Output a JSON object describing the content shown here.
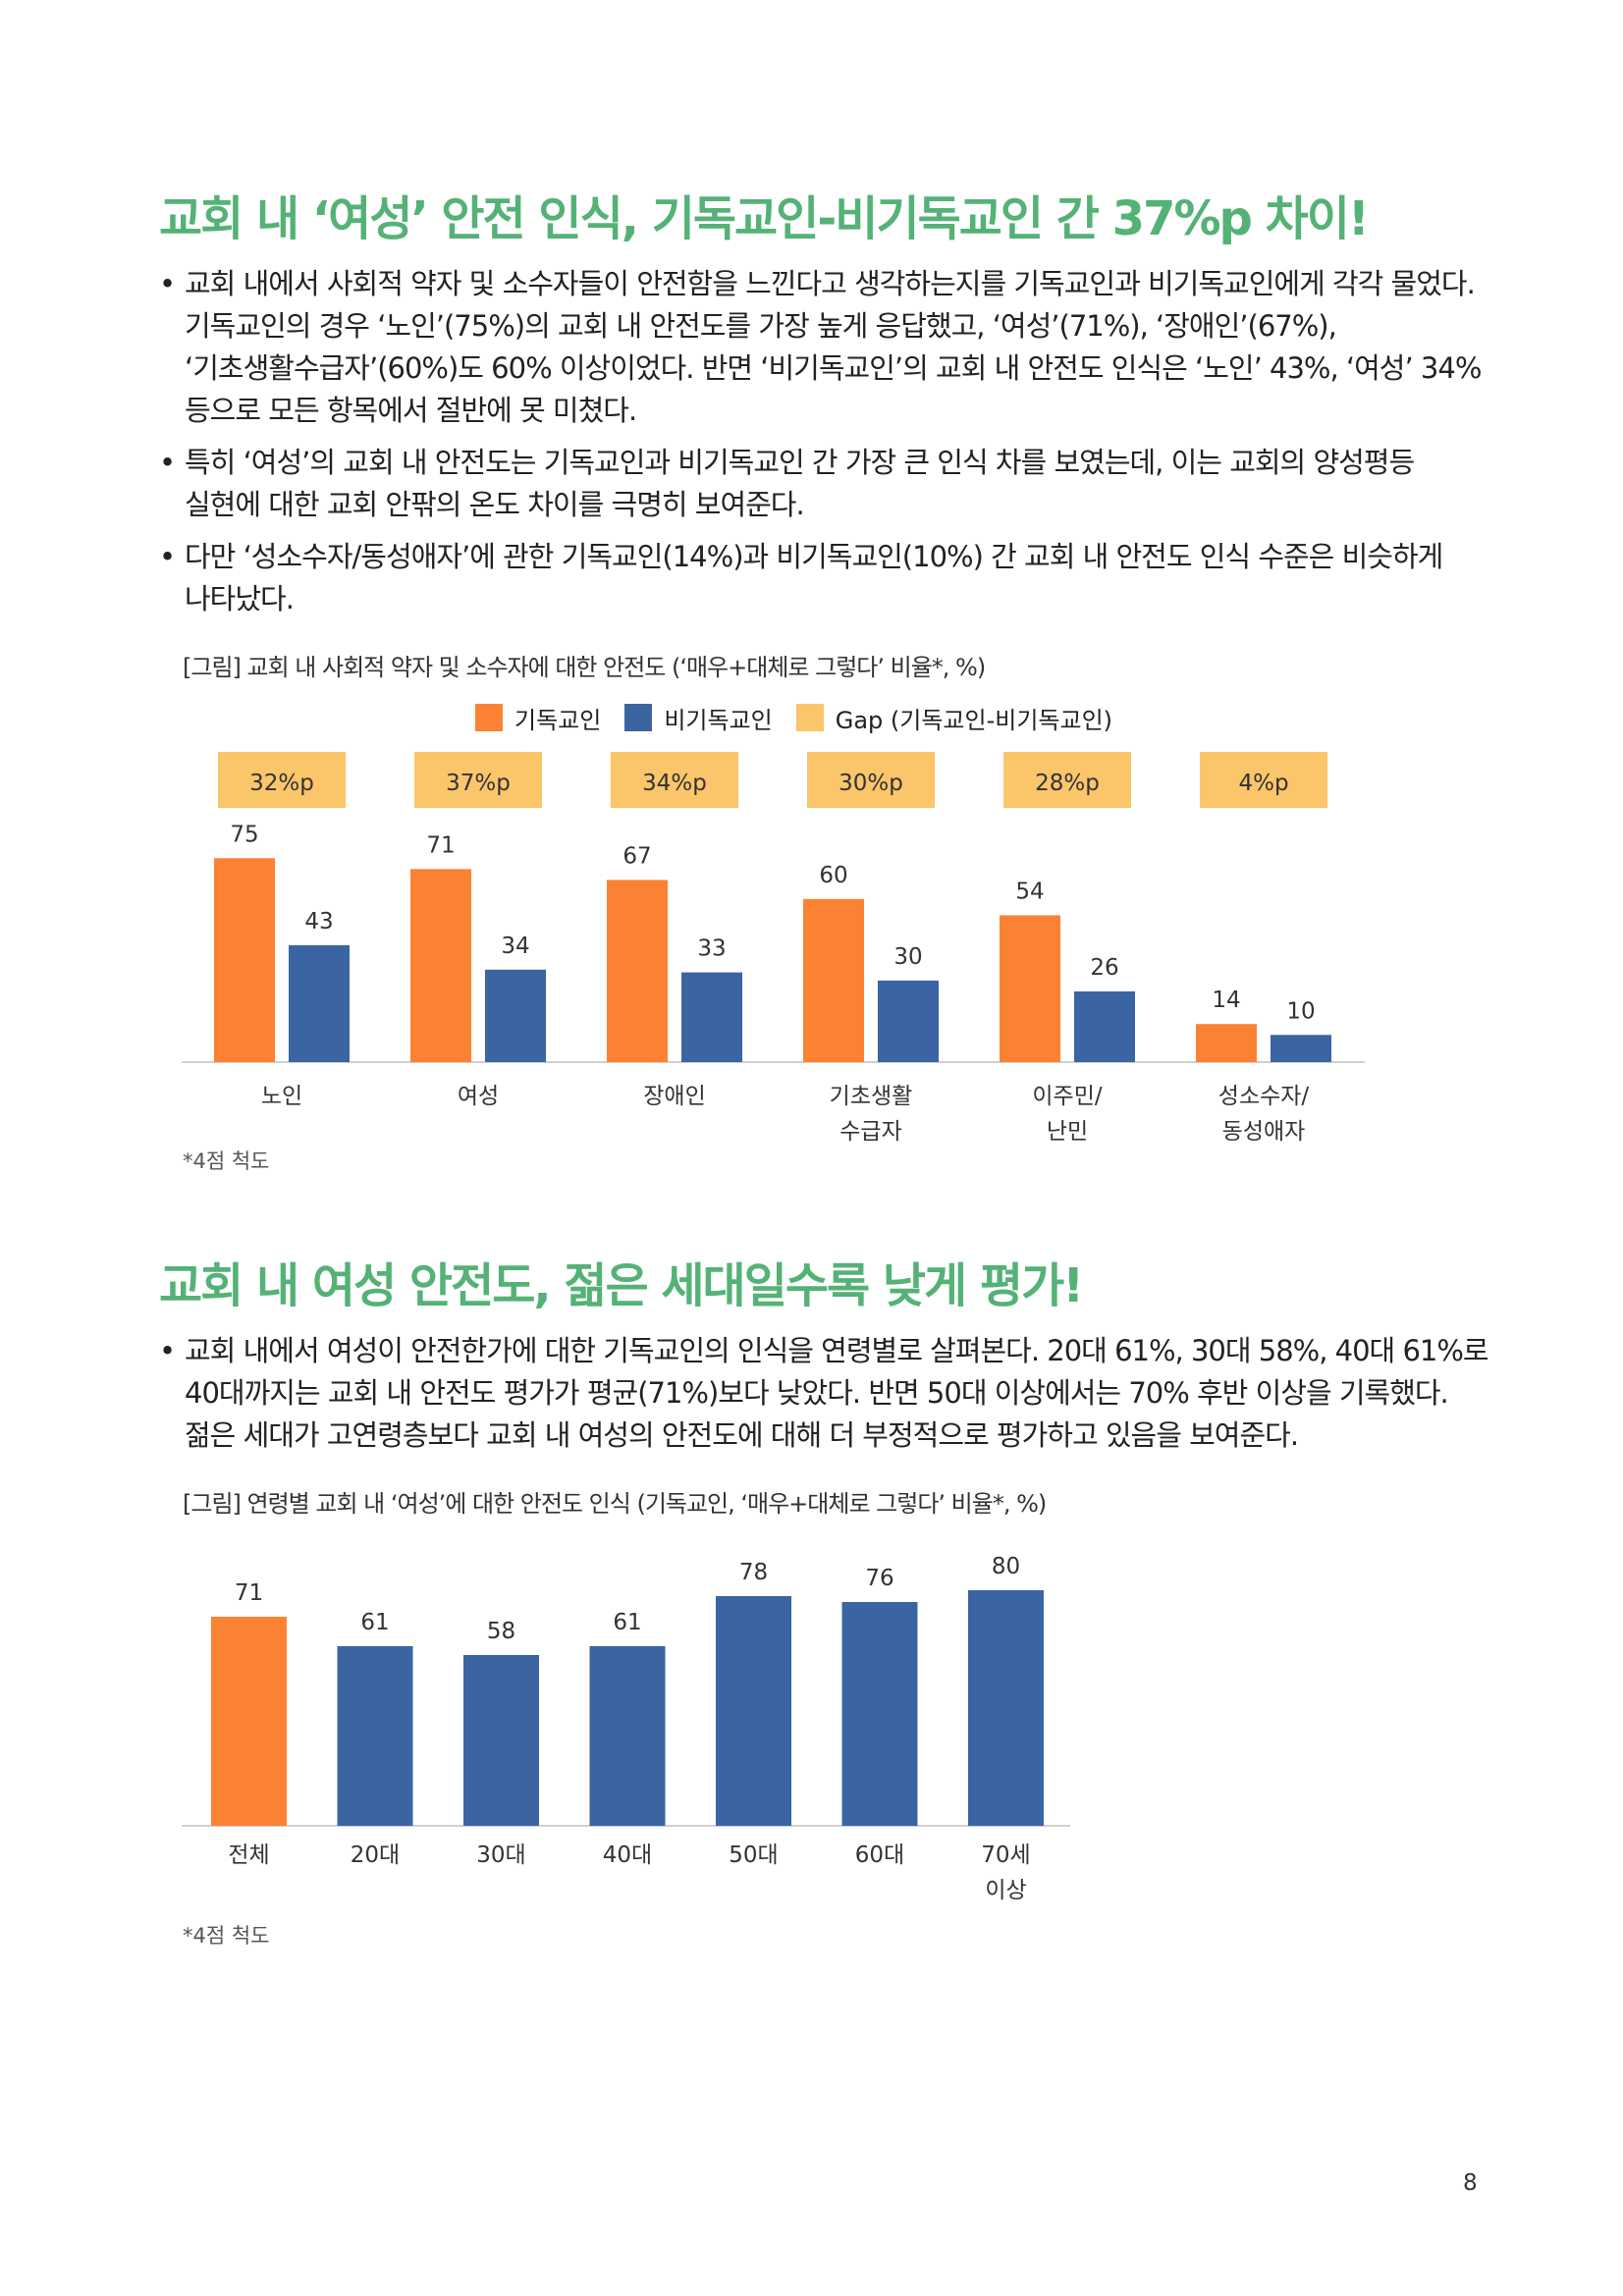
{
  "section1": {
    "heading": "교회 내 ‘여성’ 안전 인식, 기독교인-비기독교인 간 37%p 차이!",
    "bullets": [
      "교회 내에서 사회적 약자 및 소수자들이 안전함을 느낀다고 생각하는지를 기독교인과 비기독교인에게 각각 물었다. 기독교인의 경우 ‘노인’(75%)의 교회 내 안전도를 가장 높게 응답했고, ‘여성’(71%), ‘장애인’(67%), ‘기초생활수급자’(60%)도 60% 이상이었다. 반면 ‘비기독교인’의 교회 내 안전도 인식은 ‘노인’ 43%, ‘여성’ 34% 등으로 모든 항목에서 절반에 못 미쳤다.",
      "특히 ‘여성’의 교회 내 안전도는 기독교인과 비기독교인 간 가장 큰 인식 차를 보였는데, 이는 교회의 양성평등 실현에 대한 교회 안팎의 온도 차이를 극명히 보여준다.",
      "다만 ‘성소수자/동성애자’에 관한 기독교인(14%)과 비기독교인(10%) 간 교회 내 안전도 인식 수준은 비슷하게 나타났다."
    ],
    "caption": "[그림] 교회 내 사회적 약자 및 소수자에 대한 안전도 (‘매우+대체로 그렇다’ 비율*, %)",
    "legend": [
      "기독교인",
      "비기독교인",
      "Gap (기독교인-비기독교인)"
    ],
    "note": "*4점 척도"
  },
  "section2": {
    "heading": "교회 내 여성 안전도, 젊은 세대일수록 낮게 평가!",
    "bullets": [
      "교회 내에서 여성이 안전한가에 대한 기독교인의 인식을 연령별로 살펴본다. 20대 61%, 30대 58%, 40대 61%로 40대까지는 교회 내 안전도 평가가 평균(71%)보다 낮았다. 반면 50대 이상에서는 70% 후반 이상을 기록했다. 젊은 세대가 고연령층보다 교회 내 여성의 안전도에 대해 더 부정적으로 평가하고 있음을 보여준다."
    ],
    "caption": "[그림] 연령별 교회 내 ‘여성’에 대한 안전도 인식 (기독교인, ‘매우+대체로 그렇다’ 비율*, %)",
    "note": "*4점 척도"
  },
  "page_number": "8",
  "colors": {
    "heading": "#54b276",
    "christian": "#fb8232",
    "non_christian": "#3b65a2",
    "gap": "#fbc56a"
  },
  "chart_data": [
    {
      "type": "bar",
      "title": "[그림] 교회 내 사회적 약자 및 소수자에 대한 안전도 (‘매우+대체로 그렇다’ 비율*, %)",
      "categories": [
        [
          "노인"
        ],
        [
          "여성"
        ],
        [
          "장애인"
        ],
        [
          "기초생활",
          "수급자"
        ],
        [
          "이주민/",
          "난민"
        ],
        [
          "성소수자/",
          "동성애자"
        ]
      ],
      "series": [
        {
          "name": "기독교인",
          "values": [
            75,
            71,
            67,
            60,
            54,
            14
          ]
        },
        {
          "name": "비기독교인",
          "values": [
            43,
            34,
            33,
            30,
            26,
            10
          ]
        }
      ],
      "gap_labels": [
        "32%p",
        "37%p",
        "34%p",
        "30%p",
        "28%p",
        "4%p"
      ],
      "legend_placement": "top",
      "grid": false
    },
    {
      "type": "bar",
      "title": "[그림] 연령별 교회 내 ‘여성’에 대한 안전도 인식 (기독교인, ‘매우+대체로 그렇다’ 비율*, %)",
      "categories": [
        [
          "전체"
        ],
        [
          "20대"
        ],
        [
          "30대"
        ],
        [
          "40대"
        ],
        [
          "50대"
        ],
        [
          "60대"
        ],
        [
          "70세",
          "이상"
        ]
      ],
      "values": [
        71,
        61,
        58,
        61,
        78,
        76,
        80
      ],
      "highlight_index": 0,
      "grid": false
    }
  ]
}
